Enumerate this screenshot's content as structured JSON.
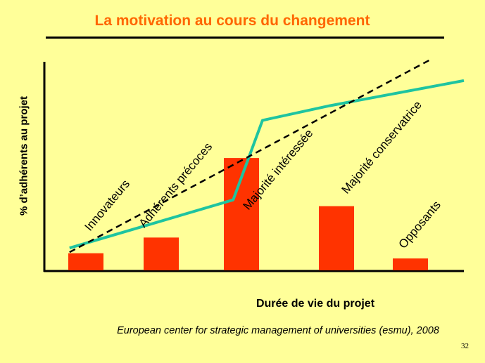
{
  "header": {
    "title": "La motivation au cours du changement"
  },
  "footer": {
    "source": "European center for strategic management  of universities (esmu), 2008",
    "page_number": "32"
  },
  "colors": {
    "background": "#ffff99",
    "title": "#ff6600",
    "bars": "#ff3300",
    "curve": "#1ec4a0",
    "trend": "#000000"
  },
  "chart_data": {
    "type": "bar",
    "title": "La motivation au cours du changement",
    "xlabel": "Durée de vie du projet",
    "ylabel": "% d’adhérents au projet",
    "ylim": [
      0,
      100
    ],
    "categories": [
      "Innovateurs",
      "Adhérents précoces",
      "Majorité intéressée",
      "Majorité conservatrice",
      "Opposants"
    ],
    "series": [
      {
        "values": [
          8.5,
          16,
          54,
          31,
          6
        ]
      }
    ],
    "line_series": [
      {
        "style": "solid",
        "x": [
          0.06,
          0.45,
          0.52,
          0.68,
          1.0
        ],
        "y": [
          11,
          34,
          72,
          79,
          91
        ]
      },
      {
        "style": "dashed",
        "x": [
          0.06,
          0.92
        ],
        "y": [
          9,
          101
        ]
      }
    ],
    "grid": false,
    "legend": "none"
  }
}
